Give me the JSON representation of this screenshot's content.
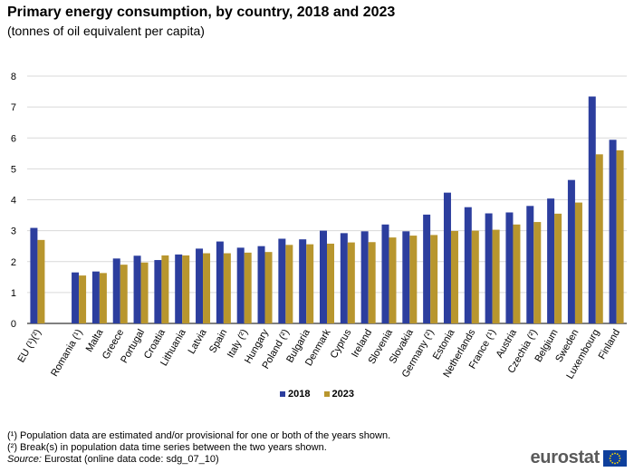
{
  "title": "Primary energy consumption, by country, 2018 and 2023",
  "subtitle": "(tonnes of oil equivalent per capita)",
  "colors": {
    "series_2018": "#2c3e9e",
    "series_2023": "#b8962e",
    "grid": "#d9d9d9",
    "axis": "#000000",
    "flag_blue": "#0e3f9c",
    "flag_star": "#ffdd00"
  },
  "legend": [
    {
      "label": "2018",
      "color": "#2c3e9e"
    },
    {
      "label": "2023",
      "color": "#b8962e"
    }
  ],
  "footnotes": [
    "(¹) Population data are estimated and/or provisional for one or both of the years shown.",
    "(²) Break(s) in population data time series between the two years shown."
  ],
  "source": {
    "label": "Source:",
    "text": "Eurostat (online data code: sdg_07_10)"
  },
  "logo": {
    "text": "eurostat",
    "icon": "eu-flag-icon"
  },
  "chart_data": {
    "type": "bar",
    "title": "Primary energy consumption, by country, 2018 and 2023",
    "ylabel": "tonnes of oil equivalent per capita",
    "xlabel": "",
    "ylim": [
      0,
      8
    ],
    "yticks": [
      0,
      1,
      2,
      3,
      4,
      5,
      6,
      7,
      8
    ],
    "grid": true,
    "legend_position": "bottom-center",
    "categories": [
      "EU (¹)(²)",
      "",
      "Romania (¹)",
      "Malta",
      "Greece",
      "Portugal",
      "Croatia",
      "Lithuania",
      "Latvia",
      "Spain",
      "Italy (²)",
      "Hungary",
      "Poland (²)",
      "Bulgaria",
      "Denmark",
      "Cyprus",
      "Ireland",
      "Slovenia",
      "Slovakia",
      "Germany (²)",
      "Estonia",
      "Netherlands",
      "France (¹)",
      "Austria",
      "Czechia (²)",
      "Belgium",
      "Sweden",
      "Luxembourg",
      "Finland"
    ],
    "series": [
      {
        "name": "2018",
        "values": [
          3.09,
          null,
          1.65,
          1.68,
          2.1,
          2.19,
          2.05,
          2.23,
          2.42,
          2.65,
          2.45,
          2.5,
          2.74,
          2.72,
          3.0,
          2.92,
          2.98,
          3.2,
          2.98,
          3.52,
          4.23,
          3.76,
          3.56,
          3.59,
          3.8,
          4.04,
          4.64,
          7.34,
          5.94
        ]
      },
      {
        "name": "2023",
        "values": [
          2.7,
          null,
          1.55,
          1.63,
          1.9,
          1.97,
          2.2,
          2.2,
          2.27,
          2.27,
          2.29,
          2.31,
          2.54,
          2.56,
          2.58,
          2.62,
          2.63,
          2.78,
          2.84,
          2.86,
          2.99,
          3.0,
          3.03,
          3.2,
          3.28,
          3.55,
          3.91,
          5.47,
          5.6
        ]
      }
    ]
  }
}
